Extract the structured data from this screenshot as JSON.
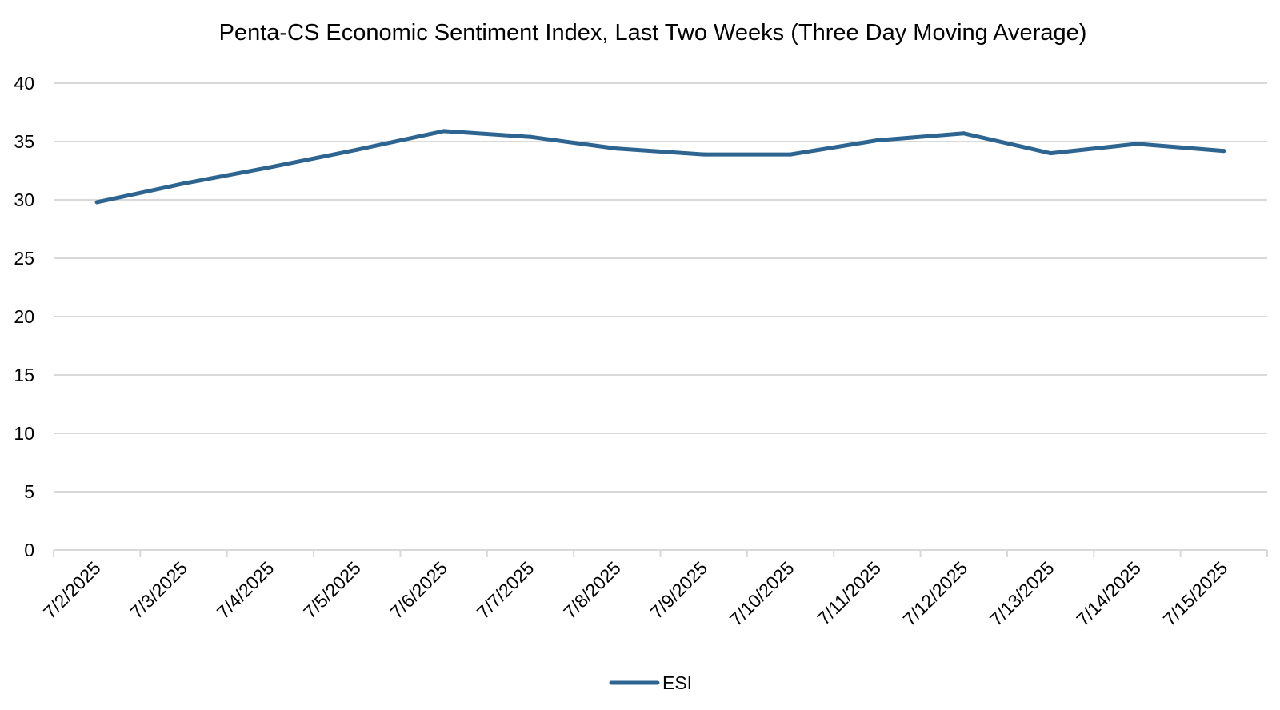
{
  "chart_data": {
    "type": "line",
    "title": "Penta-CS Economic Sentiment Index, Last Two Weeks (Three Day Moving Average)",
    "xlabel": "",
    "ylabel": "",
    "categories": [
      "7/2/2025",
      "7/3/2025",
      "7/4/2025",
      "7/5/2025",
      "7/6/2025",
      "7/7/2025",
      "7/8/2025",
      "7/9/2025",
      "7/10/2025",
      "7/11/2025",
      "7/12/2025",
      "7/13/2025",
      "7/14/2025",
      "7/15/2025"
    ],
    "series": [
      {
        "name": "ESI",
        "color": "#2E6590",
        "values": [
          29.8,
          31.4,
          32.8,
          34.3,
          35.9,
          35.4,
          34.4,
          33.9,
          33.9,
          35.1,
          35.7,
          34.0,
          34.8,
          34.2
        ]
      }
    ],
    "ylim": [
      0,
      40
    ],
    "yticks": [
      0,
      5,
      10,
      15,
      20,
      25,
      30,
      35,
      40
    ],
    "grid": true,
    "legend": "bottom-center"
  }
}
